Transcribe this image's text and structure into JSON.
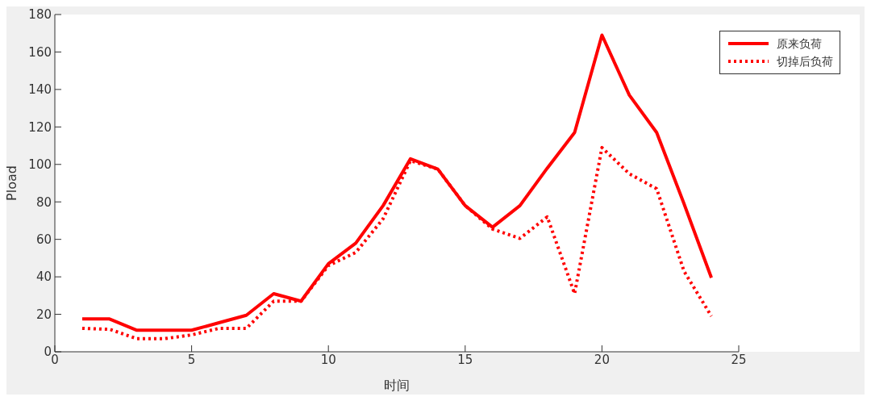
{
  "chart_data": {
    "type": "line",
    "xlabel": "时间",
    "ylabel": "Pload",
    "x": [
      1,
      2,
      3,
      4,
      5,
      6,
      7,
      8,
      9,
      10,
      11,
      12,
      13,
      14,
      15,
      16,
      17,
      18,
      19,
      20,
      21,
      22,
      23,
      24
    ],
    "series": [
      {
        "name": "原来负荷",
        "color": "#ff0000",
        "line_style": "solid",
        "values": [
          17.5,
          17.5,
          11.5,
          11.5,
          11.5,
          15.5,
          19.5,
          31,
          27,
          47,
          58,
          78,
          103,
          97.5,
          78,
          66.5,
          78,
          98,
          117,
          169,
          137,
          117,
          79,
          39.5
        ]
      },
      {
        "name": "切掉后负荷",
        "color": "#ff0000",
        "line_style": "dotted",
        "values": [
          12.5,
          12,
          7,
          7,
          9,
          12.5,
          12.5,
          27,
          27,
          46,
          53,
          71,
          102,
          97.5,
          78,
          65.5,
          60.5,
          72,
          31,
          109,
          95,
          87,
          43,
          19
        ]
      }
    ],
    "xlim": [
      0,
      25
    ],
    "xticks": [
      0,
      5,
      10,
      15,
      20,
      25
    ],
    "ylim": [
      0,
      180
    ],
    "yticks": [
      0,
      20,
      40,
      60,
      80,
      100,
      120,
      140,
      160,
      180
    ],
    "grid": false,
    "legend": "top right",
    "marker": "none"
  }
}
